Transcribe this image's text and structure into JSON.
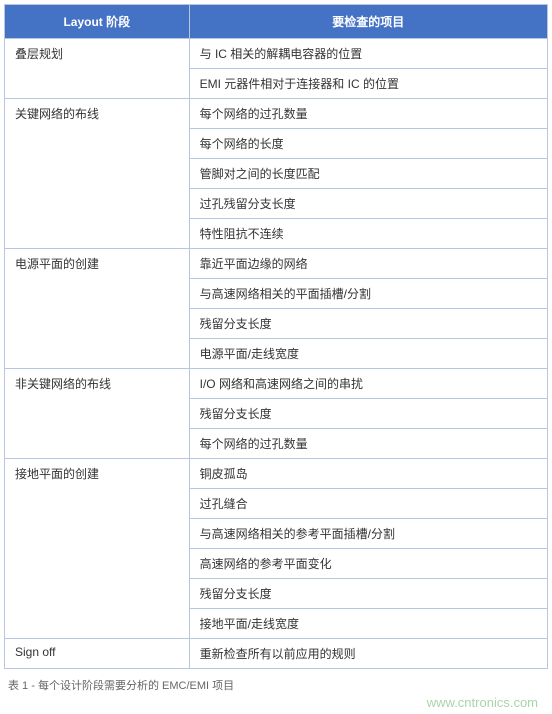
{
  "table": {
    "header_bg": "#4472c4",
    "header_color": "#ffffff",
    "border_color": "#b8c5e0",
    "columns": [
      "Layout 阶段",
      "要检查的项目"
    ],
    "sections": [
      {
        "phase": "叠层规划",
        "items": [
          "与 IC 相关的解耦电容器的位置",
          "EMI 元器件相对于连接器和 IC 的位置"
        ]
      },
      {
        "phase": "关键网络的布线",
        "items": [
          "每个网络的过孔数量",
          "每个网络的长度",
          "管脚对之间的长度匹配",
          "过孔残留分支长度",
          "特性阻抗不连续"
        ]
      },
      {
        "phase": "电源平面的创建",
        "items": [
          "靠近平面边缘的网络",
          "与高速网络相关的平面插槽/分割",
          "残留分支长度",
          "电源平面/走线宽度"
        ]
      },
      {
        "phase": "非关键网络的布线",
        "items": [
          "I/O 网络和高速网络之间的串扰",
          "残留分支长度",
          "每个网络的过孔数量"
        ]
      },
      {
        "phase": "接地平面的创建",
        "items": [
          "铜皮孤岛",
          "过孔缝合",
          "与高速网络相关的参考平面插槽/分割",
          "高速网络的参考平面变化",
          "残留分支长度",
          "接地平面/走线宽度"
        ]
      },
      {
        "phase": "Sign off",
        "items": [
          "重新检查所有以前应用的规则"
        ]
      }
    ]
  },
  "caption": "表 1 - 每个设计阶段需要分析的 EMC/EMI 项目",
  "watermark": "www.cntronics.com"
}
